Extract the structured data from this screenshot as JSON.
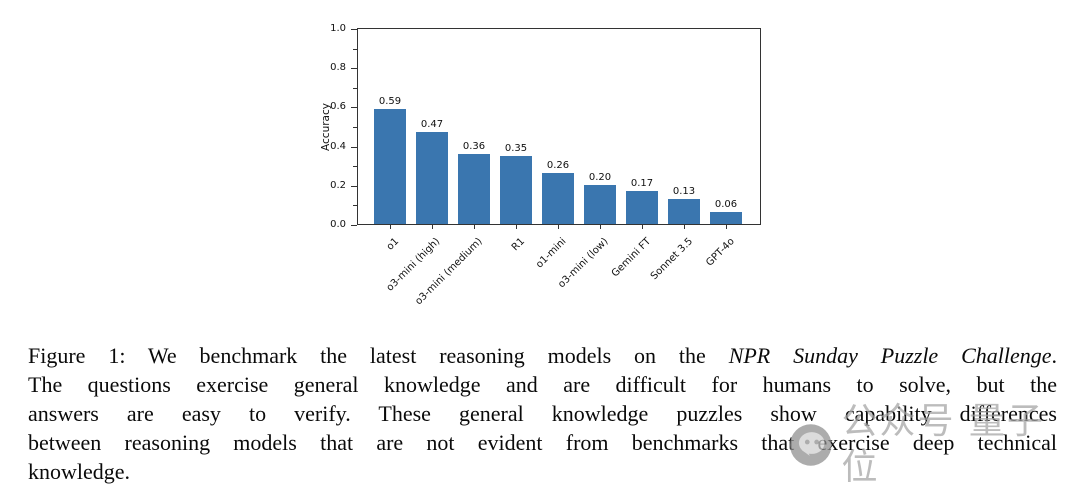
{
  "chart_data": {
    "type": "bar",
    "title": "",
    "xlabel": "",
    "ylabel": "Accuracy",
    "ylim": [
      0.0,
      1.0
    ],
    "yticks": [
      0.0,
      0.2,
      0.4,
      0.6,
      0.8,
      1.0
    ],
    "ytick_labels": [
      "0.0",
      "0.2",
      "0.4",
      "0.6",
      "0.8",
      "1.0"
    ],
    "minor_yticks": [
      0.1,
      0.3,
      0.5,
      0.7,
      0.9
    ],
    "categories": [
      "o1",
      "o3-mini (high)",
      "o3-mini (medium)",
      "R1",
      "o1-mini",
      "o3-mini (low)",
      "Gemini FT",
      "Sonnet 3.5",
      "GPT-4o"
    ],
    "values": [
      0.59,
      0.47,
      0.36,
      0.35,
      0.26,
      0.2,
      0.17,
      0.13,
      0.06
    ],
    "bar_value_labels": [
      "0.59",
      "0.47",
      "0.36",
      "0.35",
      "0.26",
      "0.20",
      "0.17",
      "0.13",
      "0.06"
    ],
    "bar_color": "#3a76af",
    "grid": false,
    "legend": "none",
    "xtick_label_rotation_deg": 45
  },
  "caption": {
    "lines": [
      {
        "justify": true,
        "segments": [
          {
            "text": "Figure 1: We benchmark the latest reasoning models on the ",
            "italic": false
          },
          {
            "text": "NPR Sunday Puzzle Challenge",
            "italic": true
          },
          {
            "text": ".",
            "italic": false
          }
        ]
      },
      {
        "justify": true,
        "segments": [
          {
            "text": "The questions exercise general knowledge and are difficult for humans to solve, but the",
            "italic": false
          }
        ]
      },
      {
        "justify": true,
        "segments": [
          {
            "text": "answers are easy to verify. These general knowledge puzzles show capability differences",
            "italic": false
          }
        ]
      },
      {
        "justify": true,
        "segments": [
          {
            "text": "between reasoning models that are not evident from benchmarks that exercise deep technical",
            "italic": false
          }
        ]
      },
      {
        "justify": false,
        "segments": [
          {
            "text": "knowledge.",
            "italic": false
          }
        ]
      }
    ]
  },
  "watermark": {
    "icon": "qbitai-chat-bubble-icon",
    "text": "公众号 量子位",
    "color": "#a3a3a3"
  }
}
